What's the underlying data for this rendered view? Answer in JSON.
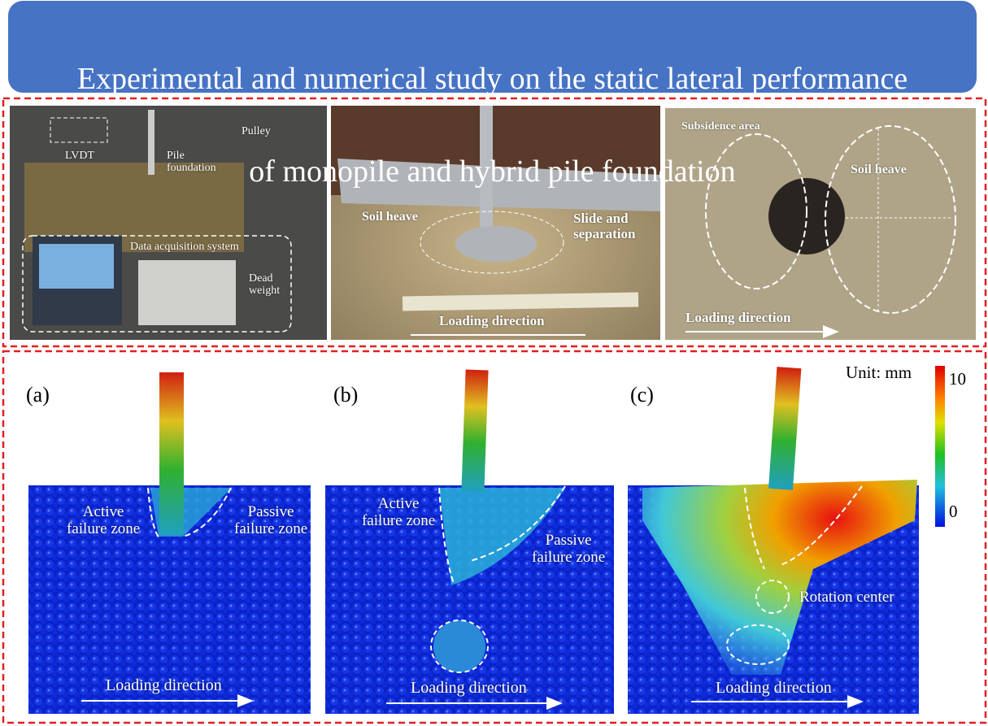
{
  "title": [
    "Experimental and numerical study on the static lateral performance",
    "of monopile and hybrid pile foundation"
  ],
  "photos": [
    {
      "labels": [
        "LVDT",
        "Pile\nfoundation",
        "Pulley",
        "Data acquisition system",
        "Dead\nweight"
      ]
    },
    {
      "labels": [
        "Soil heave",
        "Slide and\nseparation",
        "Loading direction"
      ]
    },
    {
      "labels": [
        "Subsidence area",
        "Soil heave",
        "Loading direction"
      ]
    }
  ],
  "simulations": [
    {
      "panel": "(a)",
      "labels": [
        "Active\nfailure zone",
        "Passive\nfailure zone",
        "Loading direction"
      ]
    },
    {
      "panel": "(b)",
      "labels": [
        "Active\nfailure zone",
        "Passive\nfailure zone",
        "Loading direction"
      ]
    },
    {
      "panel": "(c)",
      "labels": [
        "Rotation center",
        "Loading direction"
      ]
    }
  ],
  "colorbar": {
    "unit": "Unit: mm",
    "max": 10,
    "min": 0
  }
}
